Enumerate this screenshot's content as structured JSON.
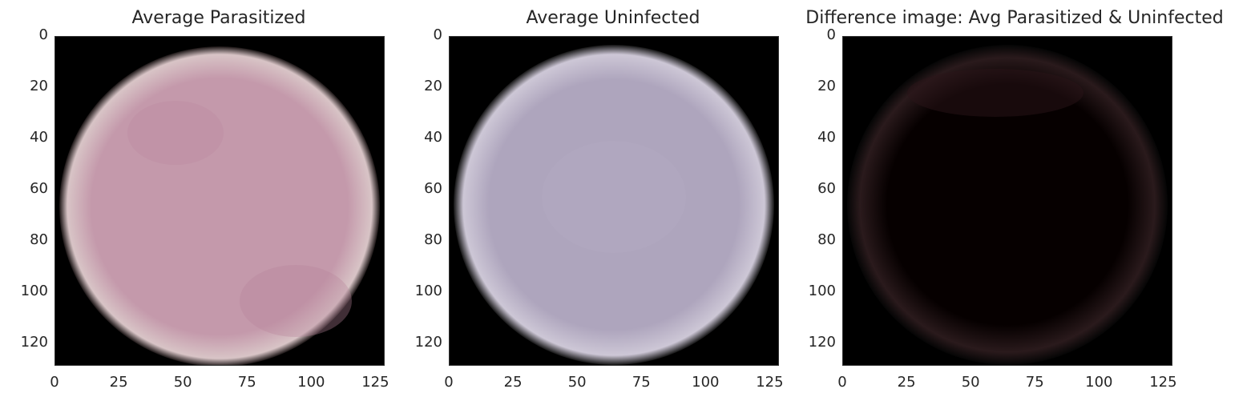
{
  "panels": [
    {
      "title": "Average Parasitized",
      "fill": "#c499ab",
      "mottle": "#b8839c",
      "rim": "#d8c4c6"
    },
    {
      "title": "Average Uninfected",
      "fill": "#aea5bd",
      "mottle": "#a59bb4",
      "rim": "#cdc7d6"
    },
    {
      "title": "Difference image: Avg Parasitized & Uninfected",
      "fill": "#060000",
      "mottle": "#0c0202",
      "rim": "#2a1a1c"
    }
  ],
  "y_ticks": [
    "0",
    "20",
    "40",
    "60",
    "80",
    "100",
    "120"
  ],
  "x_ticks": [
    "0",
    "25",
    "50",
    "75",
    "100",
    "125"
  ],
  "axis_range": [
    0,
    128
  ]
}
